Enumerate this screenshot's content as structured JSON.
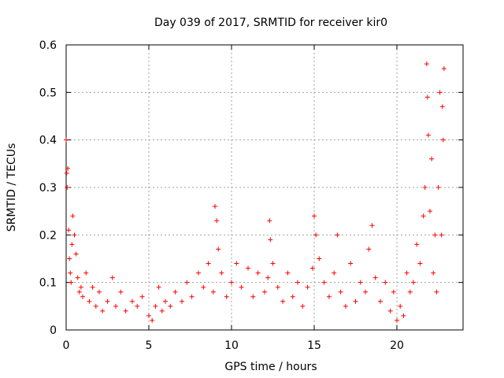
{
  "chart_data": {
    "type": "scatter",
    "title": "Day 039 of 2017, SRMTID for receiver kir0",
    "xlabel": "GPS time / hours",
    "ylabel": "SRMTID / TECUs",
    "xlim": [
      0,
      24
    ],
    "ylim": [
      0,
      0.6
    ],
    "xticks": [
      0,
      5,
      10,
      15,
      20
    ],
    "yticks": [
      0,
      0.1,
      0.2,
      0.3,
      0.4,
      0.5,
      0.6
    ],
    "xtick_labels": [
      "0",
      "5",
      "10",
      "15",
      "20"
    ],
    "ytick_labels": [
      "0",
      "0.1",
      "0.2",
      "0.3",
      "0.4",
      "0.5",
      "0.6"
    ],
    "grid": true,
    "marker": "+",
    "color": "#ff0000",
    "series": [
      {
        "name": "kir0",
        "x": [
          0.0,
          0.03,
          0.06,
          0.1,
          0.15,
          0.2,
          0.25,
          0.3,
          0.35,
          0.4,
          0.5,
          0.6,
          0.7,
          0.8,
          0.9,
          1.0,
          1.2,
          1.4,
          1.6,
          1.8,
          2.0,
          2.2,
          2.5,
          2.8,
          3.0,
          3.3,
          3.6,
          4.0,
          4.3,
          4.6,
          5.0,
          5.2,
          5.4,
          5.6,
          5.8,
          6.0,
          6.3,
          6.6,
          7.0,
          7.3,
          7.6,
          8.0,
          8.3,
          8.6,
          8.9,
          9.0,
          9.1,
          9.2,
          9.4,
          9.7,
          10.0,
          10.3,
          10.6,
          11.0,
          11.3,
          11.6,
          12.0,
          12.2,
          12.3,
          12.35,
          12.5,
          12.8,
          13.1,
          13.4,
          13.7,
          14.0,
          14.3,
          14.6,
          14.9,
          15.0,
          15.1,
          15.3,
          15.6,
          15.9,
          16.2,
          16.4,
          16.6,
          16.9,
          17.2,
          17.5,
          17.8,
          18.1,
          18.3,
          18.5,
          18.7,
          19.0,
          19.3,
          19.6,
          19.8,
          20.0,
          20.2,
          20.4,
          20.6,
          20.8,
          21.0,
          21.2,
          21.4,
          21.6,
          21.7,
          21.8,
          21.85,
          21.9,
          22.0,
          22.1,
          22.2,
          22.3,
          22.4,
          22.5,
          22.6,
          22.7,
          22.75,
          22.8,
          22.85
        ],
        "y": [
          0.4,
          0.33,
          0.3,
          0.34,
          0.21,
          0.15,
          0.12,
          0.1,
          0.18,
          0.24,
          0.2,
          0.16,
          0.11,
          0.08,
          0.09,
          0.07,
          0.12,
          0.06,
          0.09,
          0.05,
          0.08,
          0.04,
          0.06,
          0.11,
          0.05,
          0.08,
          0.04,
          0.06,
          0.05,
          0.07,
          0.03,
          0.02,
          0.05,
          0.09,
          0.04,
          0.06,
          0.05,
          0.08,
          0.06,
          0.1,
          0.07,
          0.12,
          0.09,
          0.14,
          0.08,
          0.26,
          0.23,
          0.17,
          0.12,
          0.07,
          0.1,
          0.14,
          0.09,
          0.13,
          0.07,
          0.12,
          0.08,
          0.11,
          0.23,
          0.19,
          0.14,
          0.09,
          0.06,
          0.12,
          0.07,
          0.1,
          0.05,
          0.09,
          0.13,
          0.24,
          0.2,
          0.15,
          0.1,
          0.07,
          0.12,
          0.2,
          0.08,
          0.05,
          0.14,
          0.06,
          0.1,
          0.08,
          0.17,
          0.22,
          0.11,
          0.06,
          0.1,
          0.04,
          0.08,
          0.02,
          0.05,
          0.03,
          0.12,
          0.08,
          0.1,
          0.18,
          0.14,
          0.24,
          0.3,
          0.56,
          0.49,
          0.41,
          0.25,
          0.36,
          0.12,
          0.2,
          0.08,
          0.3,
          0.5,
          0.2,
          0.47,
          0.4,
          0.55
        ]
      }
    ]
  }
}
